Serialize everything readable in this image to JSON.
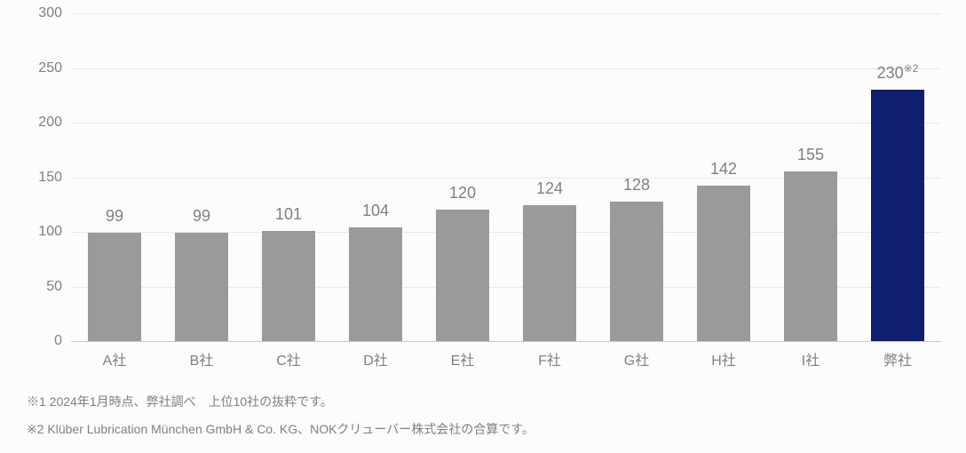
{
  "chart": {
    "type": "bar",
    "categories": [
      "A社",
      "B社",
      "C社",
      "D社",
      "E社",
      "F社",
      "G社",
      "H社",
      "I社",
      "弊社"
    ],
    "values": [
      99,
      99,
      101,
      104,
      120,
      124,
      128,
      142,
      155,
      230
    ],
    "value_labels": [
      "99",
      "99",
      "101",
      "104",
      "120",
      "124",
      "128",
      "142",
      "155",
      "230"
    ],
    "value_superscripts": [
      "",
      "",
      "",
      "",
      "",
      "",
      "",
      "",
      "",
      "※2"
    ],
    "bar_colors": [
      "#9a9a9a",
      "#9a9a9a",
      "#9a9a9a",
      "#9a9a9a",
      "#9a9a9a",
      "#9a9a9a",
      "#9a9a9a",
      "#9a9a9a",
      "#9a9a9a",
      "#0f1e6e"
    ],
    "ylim": [
      0,
      300
    ],
    "yticks": [
      0,
      50,
      100,
      150,
      200,
      250,
      300
    ],
    "background_color": "#fcfcfa",
    "grid_color": "#e8e8e8",
    "axis_color": "#c8c8c8",
    "text_color": "#808080",
    "label_fontsize": 16,
    "value_fontsize": 18,
    "bar_width": 0.62
  },
  "footnotes": {
    "note1": "※1 2024年1月時点、弊社調べ　上位10社の抜粋です。",
    "note2": "※2 Klüber Lubrication München GmbH & Co. KG、NOKクリューバー株式会社の合算です。"
  }
}
